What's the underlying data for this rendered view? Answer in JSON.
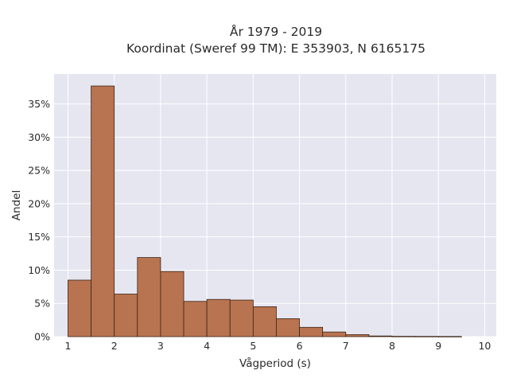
{
  "chart_data": {
    "type": "bar",
    "title_line1": "År 1979 - 2019",
    "title_line2": "Koordinat (Sweref 99 TM): E 353903, N 6165175",
    "xlabel": "Vågperiod (s)",
    "ylabel": "Andel",
    "xlim": [
      0.7,
      10.25
    ],
    "ylim": [
      0,
      0.395
    ],
    "x_ticks": [
      1,
      2,
      3,
      4,
      5,
      6,
      7,
      8,
      9,
      10
    ],
    "y_ticks": [
      0,
      0.05,
      0.1,
      0.15,
      0.2,
      0.25,
      0.3,
      0.35
    ],
    "y_tick_labels": [
      "0%",
      "5%",
      "10%",
      "15%",
      "20%",
      "25%",
      "30%",
      "35%"
    ],
    "grid": true,
    "bin_width": 0.5,
    "bins": [
      {
        "x0": 1.0,
        "x1": 1.5,
        "value": 0.085
      },
      {
        "x0": 1.5,
        "x1": 2.0,
        "value": 0.377
      },
      {
        "x0": 2.0,
        "x1": 2.5,
        "value": 0.064
      },
      {
        "x0": 2.5,
        "x1": 3.0,
        "value": 0.119
      },
      {
        "x0": 3.0,
        "x1": 3.5,
        "value": 0.098
      },
      {
        "x0": 3.5,
        "x1": 4.0,
        "value": 0.053
      },
      {
        "x0": 4.0,
        "x1": 4.5,
        "value": 0.056
      },
      {
        "x0": 4.5,
        "x1": 5.0,
        "value": 0.055
      },
      {
        "x0": 5.0,
        "x1": 5.5,
        "value": 0.045
      },
      {
        "x0": 5.5,
        "x1": 6.0,
        "value": 0.027
      },
      {
        "x0": 6.0,
        "x1": 6.5,
        "value": 0.014
      },
      {
        "x0": 6.5,
        "x1": 7.0,
        "value": 0.007
      },
      {
        "x0": 7.0,
        "x1": 7.5,
        "value": 0.003
      },
      {
        "x0": 7.5,
        "x1": 8.0,
        "value": 0.001
      },
      {
        "x0": 8.0,
        "x1": 8.5,
        "value": 0.0005
      },
      {
        "x0": 8.5,
        "x1": 9.0,
        "value": 0.0004
      },
      {
        "x0": 9.0,
        "x1": 9.5,
        "value": 0.0003
      }
    ],
    "colors": {
      "bar_fill": "#b87350",
      "bar_stroke": "#3d2516",
      "plot_background": "#e5e6f0",
      "grid": "#ffffff"
    }
  }
}
